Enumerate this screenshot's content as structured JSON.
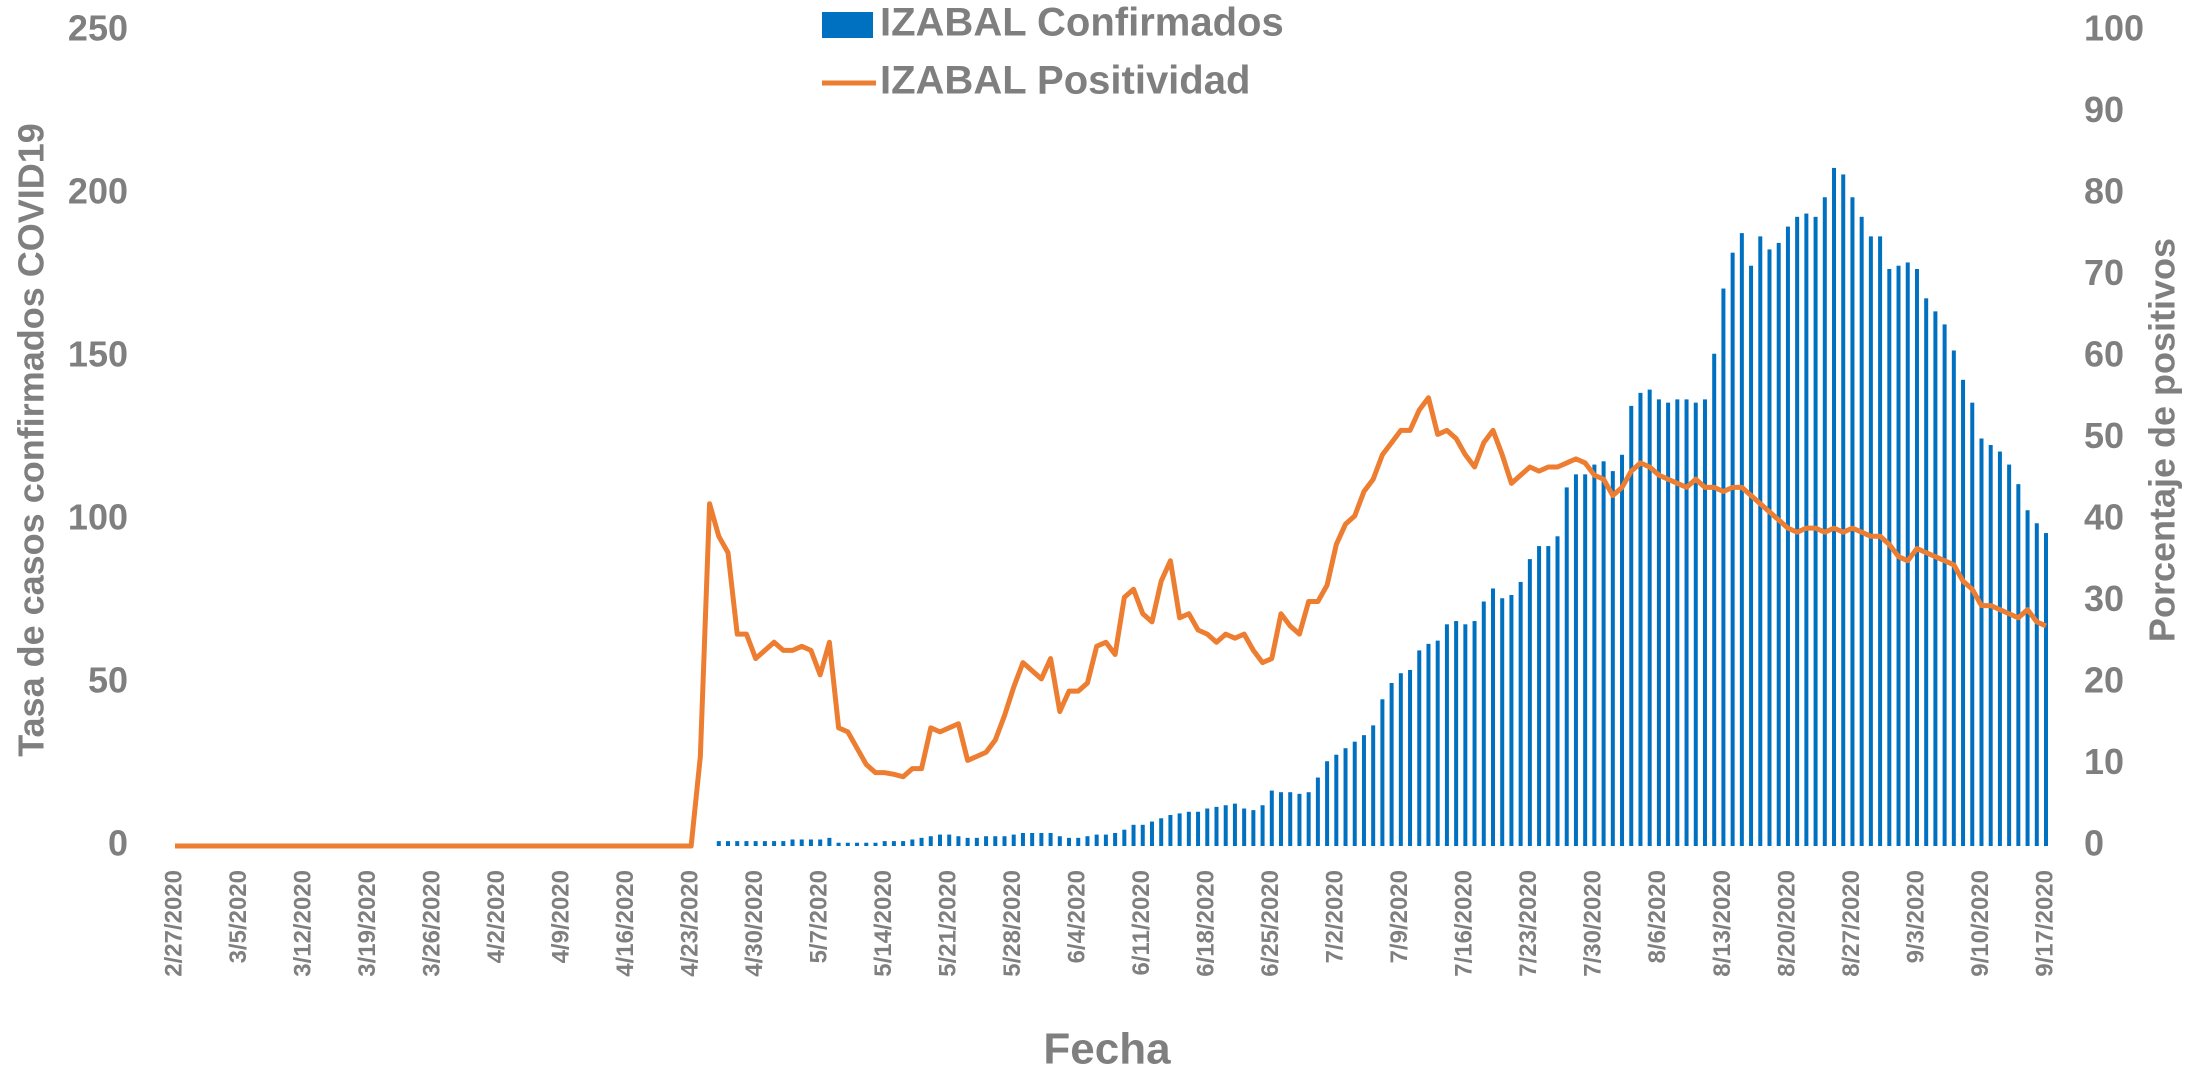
{
  "chart_data": {
    "type": "combo",
    "legend": "top",
    "xlabel": "Fecha",
    "ylabel": "Tasa de casos confirmados COVID19",
    "y2label": "Porcentaje de positivos",
    "ylim": [
      0,
      250
    ],
    "yticks": [
      0,
      50,
      100,
      150,
      200,
      250
    ],
    "y2lim": [
      0,
      100
    ],
    "y2ticks": [
      0,
      10,
      20,
      30,
      40,
      50,
      60,
      70,
      80,
      90,
      100
    ],
    "categories": [
      "2/27/2020",
      null,
      null,
      null,
      null,
      null,
      null,
      "3/5/2020",
      null,
      null,
      null,
      null,
      null,
      null,
      "3/12/2020",
      null,
      null,
      null,
      null,
      null,
      null,
      "3/19/2020",
      null,
      null,
      null,
      null,
      null,
      null,
      "3/26/2020",
      null,
      null,
      null,
      null,
      null,
      null,
      "4/2/2020",
      null,
      null,
      null,
      null,
      null,
      null,
      "4/9/2020",
      null,
      null,
      null,
      null,
      null,
      null,
      "4/16/2020",
      null,
      null,
      null,
      null,
      null,
      null,
      "4/23/2020",
      null,
      null,
      null,
      null,
      null,
      null,
      "4/30/2020",
      null,
      null,
      null,
      null,
      null,
      null,
      "5/7/2020",
      null,
      null,
      null,
      null,
      null,
      null,
      "5/14/2020",
      null,
      null,
      null,
      null,
      null,
      null,
      "5/21/2020",
      null,
      null,
      null,
      null,
      null,
      null,
      "5/28/2020",
      null,
      null,
      null,
      null,
      null,
      null,
      "6/4/2020",
      null,
      null,
      null,
      null,
      null,
      null,
      "6/11/2020",
      null,
      null,
      null,
      null,
      null,
      null,
      "6/18/2020",
      null,
      null,
      null,
      null,
      null,
      null,
      "6/25/2020",
      null,
      null,
      null,
      null,
      null,
      null,
      "7/2/2020",
      null,
      null,
      null,
      null,
      null,
      null,
      "7/9/2020",
      null,
      null,
      null,
      null,
      null,
      null,
      "7/16/2020",
      null,
      null,
      null,
      null,
      null,
      null,
      "7/23/2020",
      null,
      null,
      null,
      null,
      null,
      null,
      "7/30/2020",
      null,
      null,
      null,
      null,
      null,
      null,
      "8/6/2020",
      null,
      null,
      null,
      null,
      null,
      null,
      "8/13/2020",
      null,
      null,
      null,
      null,
      null,
      null,
      "8/20/2020",
      null,
      null,
      null,
      null,
      null,
      null,
      "8/27/2020",
      null,
      null,
      null,
      null,
      null,
      null,
      "9/3/2020",
      null,
      null,
      null,
      null,
      null,
      null,
      "9/10/2020",
      null,
      null,
      null,
      null,
      null,
      null,
      "9/17/2020"
    ],
    "series": [
      {
        "name": "IZABAL Confirmados",
        "type": "bar",
        "color": "#0070C0",
        "values": [
          0,
          0,
          0,
          0,
          0,
          0,
          0,
          0,
          0,
          0,
          0,
          0,
          0,
          0,
          0,
          0,
          0,
          0,
          0,
          0,
          0,
          0,
          0,
          0,
          0,
          0,
          0,
          0,
          0,
          0,
          0,
          0,
          0,
          0,
          0,
          0,
          0,
          0,
          0,
          0,
          0,
          0,
          0,
          0,
          0,
          0,
          0,
          0,
          0,
          0,
          0,
          0,
          0,
          0,
          0,
          0,
          0,
          0,
          0,
          1.5,
          1.5,
          1.5,
          1.5,
          1.5,
          1.5,
          1.5,
          1.5,
          2,
          2,
          2,
          2,
          2.5,
          1,
          1,
          1,
          1,
          1,
          1.5,
          1.5,
          1.5,
          2,
          2.5,
          3,
          3.5,
          3.5,
          3,
          2.5,
          2.5,
          3,
          3,
          3,
          3.5,
          4,
          4,
          4,
          4,
          3,
          2.5,
          2.5,
          3,
          3.5,
          3.5,
          4,
          5,
          6.5,
          6.5,
          7.5,
          8.5,
          9.5,
          10,
          10.5,
          10.5,
          11.5,
          12,
          12.5,
          13,
          11.5,
          11,
          12.5,
          17,
          16.5,
          16.5,
          16,
          16.5,
          21,
          26,
          28,
          30,
          32,
          34,
          37,
          45,
          50,
          53,
          54,
          60,
          62,
          63,
          68,
          69,
          68,
          69,
          75,
          79,
          76,
          77,
          81,
          88,
          92,
          92,
          95,
          110,
          114,
          114,
          117,
          118,
          115,
          120,
          135,
          139,
          140,
          137,
          136,
          137,
          137,
          136,
          137,
          151,
          171,
          182,
          188,
          178,
          187,
          183,
          185,
          190,
          193,
          194,
          193,
          199,
          208,
          206,
          199,
          193,
          187,
          187,
          177,
          178,
          179,
          177,
          168,
          164,
          160,
          152,
          143,
          136,
          125,
          123,
          121,
          117,
          111,
          103,
          99,
          96
        ]
      },
      {
        "name": "IZABAL Positividad",
        "type": "line",
        "axis": "y2",
        "color": "#ED7D31",
        "values": [
          0,
          0,
          0,
          0,
          0,
          0,
          0,
          0,
          0,
          0,
          0,
          0,
          0,
          0,
          0,
          0,
          0,
          0,
          0,
          0,
          0,
          0,
          0,
          0,
          0,
          0,
          0,
          0,
          0,
          0,
          0,
          0,
          0,
          0,
          0,
          0,
          0,
          0,
          0,
          0,
          0,
          0,
          0,
          0,
          0,
          0,
          0,
          0,
          0,
          0,
          0,
          0,
          0,
          0,
          0,
          0,
          0,
          11,
          42,
          38,
          36,
          26,
          26,
          23,
          24,
          25,
          24,
          24,
          24.5,
          24,
          21,
          25,
          14.5,
          14,
          12,
          10,
          9,
          9,
          8.8,
          8.5,
          9.5,
          9.5,
          14.5,
          14,
          14.5,
          15,
          10.5,
          11,
          11.5,
          13,
          16,
          19.5,
          22.5,
          21.5,
          20.5,
          23,
          16.5,
          19,
          19,
          20,
          24.5,
          25,
          23.5,
          30.5,
          31.5,
          28.5,
          27.5,
          32.5,
          35,
          28,
          28.5,
          26.5,
          26,
          25,
          26,
          25.5,
          26,
          24,
          22.5,
          23,
          28.5,
          27,
          26,
          30,
          30,
          32,
          37,
          39.5,
          40.5,
          43.5,
          45,
          48,
          49.5,
          51,
          51,
          53.5,
          55,
          50.5,
          51,
          50,
          48,
          46.5,
          49.5,
          51,
          48,
          44.5,
          45.5,
          46.5,
          46,
          46.5,
          46.5,
          47,
          47.5,
          47,
          45.5,
          45,
          43,
          44,
          46,
          47,
          46.5,
          45.5,
          45,
          44.5,
          44,
          45,
          44,
          44,
          43.5,
          44,
          44,
          43,
          42,
          41,
          40,
          39,
          38.5,
          39,
          39,
          38.5,
          39,
          38.5,
          39,
          38.5,
          38,
          38,
          37,
          35.5,
          35,
          36.5,
          36,
          35.5,
          35,
          34.5,
          32.5,
          31.5,
          29.5,
          29.5,
          29,
          28.5,
          28,
          29,
          27.5,
          27
        ]
      }
    ]
  }
}
